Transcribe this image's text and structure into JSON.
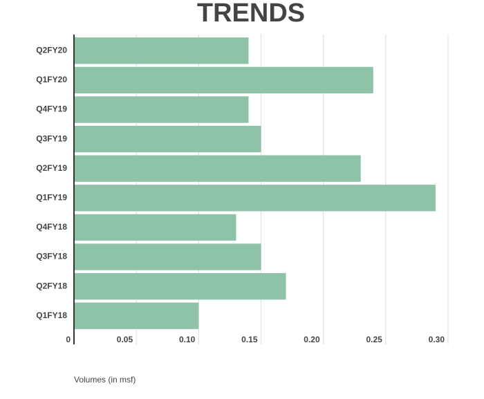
{
  "chart_data": {
    "type": "bar",
    "orientation": "horizontal",
    "title": "TRENDS",
    "x_label": "Volumes (in msf)",
    "categories": [
      "Q2FY20",
      "Q1FY20",
      "Q4FY19",
      "Q3FY19",
      "Q2FY19",
      "Q1FY19",
      "Q4FY18",
      "Q3FY18",
      "Q2FY18",
      "Q1FY18"
    ],
    "values": [
      0.14,
      0.24,
      0.14,
      0.15,
      0.23,
      0.29,
      0.13,
      0.15,
      0.17,
      0.1
    ],
    "color": "#8fc3a8",
    "xlim": [
      0,
      0.3
    ],
    "xticks": [
      0,
      0.05,
      {
        "value": 0.1,
        "label": "0.10"
      },
      0.15,
      {
        "value": 0.2,
        "label": "0.20"
      },
      0.25,
      {
        "value": 0.3,
        "label": "0.30"
      }
    ],
    "grid": true
  }
}
